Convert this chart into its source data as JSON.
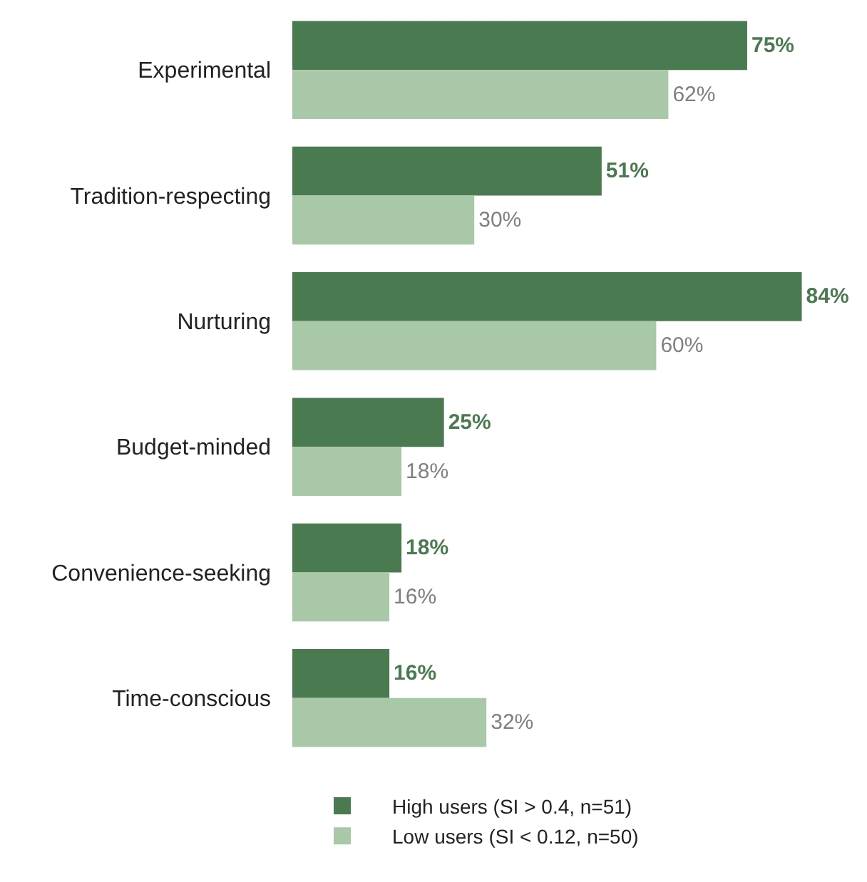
{
  "chart_data": {
    "type": "bar",
    "orientation": "horizontal",
    "categories": [
      "Experimental",
      "Tradition-respecting",
      "Nurturing",
      "Budget-minded",
      "Convenience-seeking",
      "Time-conscious"
    ],
    "series": [
      {
        "name": "High users (SI > 0.4, n=51)",
        "color": "#4a7a4f",
        "values": [
          75,
          51,
          84,
          25,
          18,
          16
        ],
        "value_labels": [
          "75%",
          "51%",
          "84%",
          "25%",
          "18%",
          "16%"
        ]
      },
      {
        "name": "Low users (SI < 0.12, n=50)",
        "color": "#a8c8a8",
        "values": [
          62,
          30,
          60,
          18,
          16,
          32
        ],
        "value_labels": [
          "62%",
          "30%",
          "60%",
          "18%",
          "16%",
          "32%"
        ]
      }
    ],
    "legend": "bottom",
    "grid": false
  }
}
